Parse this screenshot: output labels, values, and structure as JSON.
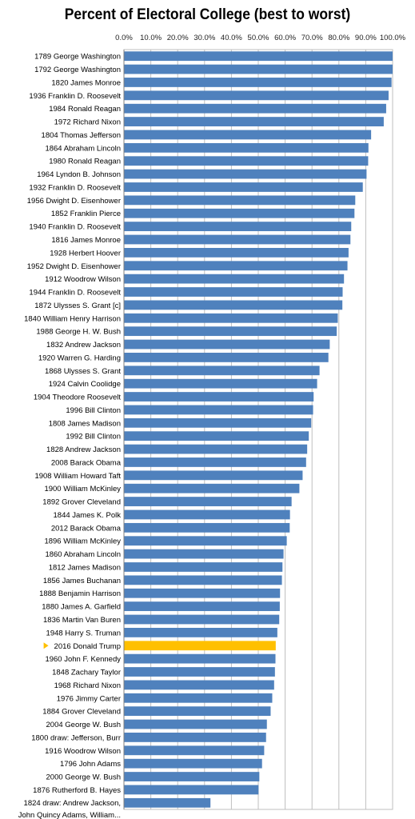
{
  "chart_data": {
    "type": "bar",
    "orientation": "horizontal",
    "title": "Percent of Electoral College (best to worst)",
    "xlim": [
      0,
      100
    ],
    "x_ticks": [
      "0.0%",
      "10.0%",
      "20.0%",
      "30.0%",
      "40.0%",
      "50.0%",
      "60.0%",
      "70.0%",
      "80.0%",
      "90.0%",
      "100.0%"
    ],
    "x_axis_position": "top",
    "grid": true,
    "colors": {
      "default_bar": "#4f81bd",
      "highlight_bar": "#ffc000",
      "highlight_marker": "#ffc000"
    },
    "highlight": "2016 Donald Trump",
    "categories": [
      "1789 George Washington",
      "1792 George Washington",
      "1820 James Monroe",
      "1936 Franklin D. Roosevelt",
      "1984 Ronald Reagan",
      "1972 Richard Nixon",
      "1804 Thomas Jefferson",
      "1864 Abraham Lincoln",
      "1980 Ronald Reagan",
      "1964 Lyndon B. Johnson",
      "1932 Franklin D. Roosevelt",
      "1956 Dwight D. Eisenhower",
      "1852 Franklin Pierce",
      "1940 Franklin D. Roosevelt",
      "1816 James Monroe",
      "1928 Herbert Hoover",
      "1952 Dwight D. Eisenhower",
      "1912 Woodrow Wilson",
      "1944 Franklin D. Roosevelt",
      "1872 Ulysses S. Grant [c]",
      "1840 William Henry Harrison",
      "1988 George H. W. Bush",
      "1832 Andrew Jackson",
      "1920 Warren G. Harding",
      "1868 Ulysses S. Grant",
      "1924 Calvin Coolidge",
      "1904 Theodore Roosevelt",
      "1996 Bill Clinton",
      "1808 James Madison",
      "1992 Bill Clinton",
      "1828 Andrew Jackson",
      "2008 Barack Obama",
      "1908 William Howard Taft",
      "1900 William McKinley",
      "1892 Grover Cleveland",
      "1844 James K. Polk",
      "2012 Barack Obama",
      "1896 William McKinley",
      "1860 Abraham Lincoln",
      "1812 James Madison",
      "1856 James Buchanan",
      "1888 Benjamin Harrison",
      "1880 James A. Garfield",
      "1836 Martin Van Buren",
      "1948 Harry S. Truman",
      "2016 Donald Trump",
      "1960 John F. Kennedy",
      "1848 Zachary Taylor",
      "1968 Richard Nixon",
      "1976 Jimmy Carter",
      "1884 Grover Cleveland",
      "2004 George W. Bush",
      "1800 draw: Jefferson, Burr",
      "1916 Woodrow Wilson",
      "1796 John Adams",
      "2000 George W. Bush",
      "1876 Rutherford B. Hayes",
      "1824 draw: Andrew Jackson, John Quincy Adams, William..."
    ],
    "values": [
      100.0,
      100.0,
      99.6,
      98.5,
      97.6,
      96.7,
      92.0,
      91.0,
      90.9,
      90.3,
      88.9,
      86.1,
      85.8,
      84.6,
      84.3,
      83.6,
      83.2,
      81.9,
      81.4,
      81.3,
      79.6,
      79.2,
      76.6,
      76.1,
      72.8,
      71.9,
      70.6,
      70.4,
      69.7,
      68.8,
      68.2,
      67.8,
      66.5,
      65.3,
      62.4,
      61.8,
      61.7,
      60.6,
      59.4,
      59.0,
      58.8,
      58.1,
      58.0,
      57.8,
      57.1,
      56.5,
      56.4,
      56.2,
      55.9,
      55.2,
      54.6,
      53.2,
      52.9,
      52.2,
      51.4,
      50.4,
      50.1,
      32.2
    ]
  }
}
